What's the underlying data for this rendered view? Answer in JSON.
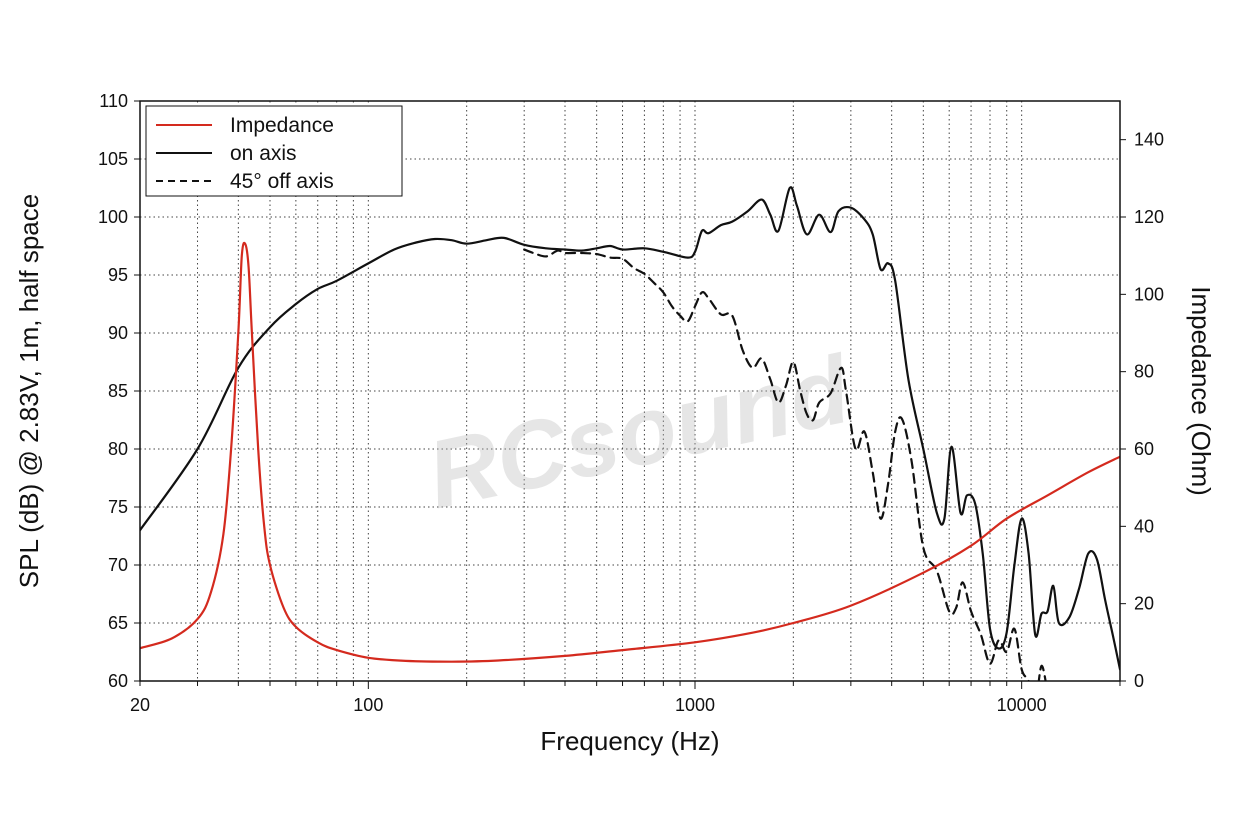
{
  "watermark": "RCsound",
  "chart_data": {
    "type": "line",
    "title": "",
    "xlabel": "Frequency (Hz)",
    "ylabel_left": "SPL (dB) @ 2.83V, 1m, half space",
    "ylabel_right": "Impedance (Ohm)",
    "x_scale": "log",
    "xlim": [
      20,
      20000
    ],
    "ylim_left": [
      60,
      110
    ],
    "ylim_right": [
      0,
      150
    ],
    "x_ticks": [
      20,
      100,
      1000,
      10000
    ],
    "x_tick_labels": [
      "20",
      "100",
      "1000",
      "10000"
    ],
    "y_left_ticks": [
      60,
      65,
      70,
      75,
      80,
      85,
      90,
      95,
      100,
      105,
      110
    ],
    "y_left_tick_labels": [
      "60",
      "65",
      "70",
      "75",
      "80",
      "85",
      "90",
      "95",
      "100",
      "105",
      "110"
    ],
    "y_right_ticks": [
      0,
      20,
      40,
      60,
      80,
      100,
      120,
      140
    ],
    "y_right_tick_labels": [
      "0",
      "20",
      "40",
      "60",
      "80",
      "100",
      "120",
      "140"
    ],
    "grid": true,
    "legend_position": "top-left",
    "series": [
      {
        "name": "Impedance",
        "axis": "right",
        "color": "#d42a1e",
        "style": "solid",
        "x": [
          20,
          25,
          30,
          33,
          36,
          38,
          40,
          41,
          42,
          43,
          44,
          46,
          48,
          50,
          55,
          60,
          70,
          80,
          100,
          130,
          180,
          250,
          400,
          600,
          1000,
          1500,
          2000,
          3000,
          5000,
          7000,
          9000,
          12000,
          16000,
          20000
        ],
        "y": [
          8.5,
          11,
          16,
          23,
          38,
          60,
          90,
          110,
          113,
          107,
          90,
          60,
          40,
          30,
          19,
          14,
          10,
          8,
          6,
          5.2,
          5,
          5.3,
          6.5,
          8,
          10,
          12.5,
          15,
          19.5,
          28,
          35,
          42,
          48,
          54,
          58
        ]
      },
      {
        "name": "on axis",
        "axis": "left",
        "color": "#111111",
        "style": "solid",
        "x": [
          20,
          30,
          40,
          50,
          60,
          70,
          80,
          100,
          120,
          140,
          160,
          180,
          200,
          230,
          260,
          300,
          350,
          400,
          450,
          500,
          550,
          600,
          700,
          800,
          950,
          1000,
          1050,
          1100,
          1200,
          1300,
          1450,
          1600,
          1700,
          1800,
          1950,
          2050,
          2200,
          2400,
          2600,
          2750,
          3000,
          3300,
          3500,
          3700,
          3900,
          4100,
          4500,
          5000,
          5500,
          5800,
          6100,
          6500,
          6800,
          7200,
          7600,
          8000,
          8500,
          9000,
          9500,
          10000,
          10500,
          11000,
          11500,
          12000,
          12500,
          13000,
          14000,
          15000,
          16000,
          17000,
          18000,
          19000,
          20000
        ],
        "y": [
          73,
          80,
          87,
          90.5,
          92.5,
          93.8,
          94.5,
          96,
          97.2,
          97.8,
          98.1,
          98,
          97.7,
          98,
          98.2,
          97.6,
          97.3,
          97.2,
          97.1,
          97.3,
          97.5,
          97.2,
          97.3,
          97,
          96.5,
          97,
          98.8,
          98.6,
          99.3,
          99.6,
          100.5,
          101.5,
          100.2,
          98.8,
          102.5,
          101,
          98.5,
          100.2,
          98.7,
          100.5,
          100.8,
          99.8,
          98.5,
          95.5,
          96,
          94.5,
          86,
          80,
          74.5,
          74,
          80.2,
          74.5,
          76,
          75.3,
          71,
          64.5,
          62.8,
          64.2,
          70,
          74,
          71,
          64,
          65.8,
          66,
          68.2,
          65,
          65.5,
          68,
          71,
          70.5,
          67,
          64,
          61
        ]
      },
      {
        "name": "45° off axis",
        "axis": "left",
        "color": "#111111",
        "style": "dashed",
        "x": [
          300,
          320,
          350,
          380,
          400,
          450,
          500,
          550,
          600,
          650,
          700,
          750,
          800,
          850,
          900,
          950,
          1000,
          1050,
          1100,
          1200,
          1300,
          1400,
          1500,
          1600,
          1700,
          1800,
          1900,
          2000,
          2100,
          2200,
          2300,
          2400,
          2600,
          2800,
          2900,
          3100,
          3300,
          3500,
          3700,
          3900,
          4100,
          4300,
          4600,
          5000,
          5500,
          6000,
          6300,
          6600,
          7000,
          7500,
          8000,
          8500,
          9000,
          9500,
          10000,
          10500,
          11000,
          11500,
          12000
        ],
        "y": [
          97.2,
          96.9,
          96.6,
          97.1,
          96.9,
          96.9,
          96.8,
          96.5,
          96.4,
          95.6,
          95.1,
          94.3,
          93.5,
          92.3,
          91.5,
          91,
          92.3,
          93.5,
          93,
          91.6,
          91.5,
          88.5,
          87,
          87.8,
          86,
          84,
          85.5,
          87.5,
          85,
          83,
          82.5,
          84,
          84.8,
          87,
          85,
          80,
          81.5,
          78,
          74,
          77,
          81.5,
          82.6,
          79,
          71.5,
          69.5,
          66,
          66.3,
          68.5,
          66,
          64,
          61.5,
          63.5,
          62.5,
          64.5,
          61,
          60,
          58,
          61.3,
          59
        ]
      }
    ]
  }
}
